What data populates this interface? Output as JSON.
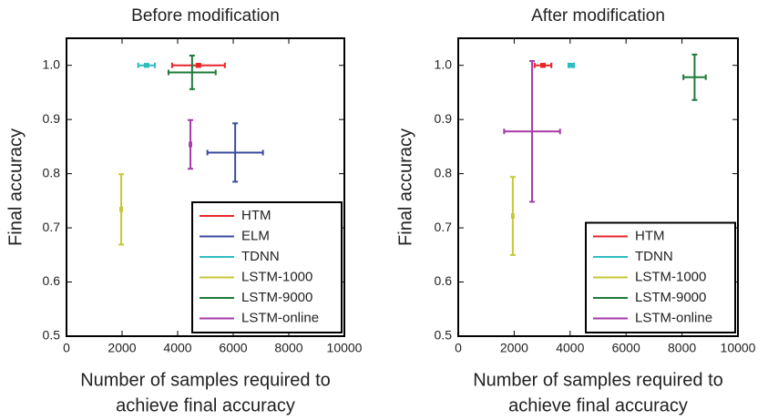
{
  "chart_data": [
    {
      "type": "errorbar",
      "title": "Before modification",
      "xlabel": [
        "Number of samples required to",
        "achieve final accuracy"
      ],
      "ylabel": "Final accuracy",
      "xlim": [
        0,
        10000
      ],
      "xticks": [
        0,
        2000,
        4000,
        6000,
        8000,
        10000
      ],
      "ylim": [
        0.5,
        1.05
      ],
      "yticks": [
        0.5,
        0.6,
        0.7,
        0.8,
        0.9,
        {
          "value": 1.0,
          "label": "1.0"
        }
      ],
      "legend": "lower right",
      "series": [
        {
          "name": "HTM",
          "color": "#e8262a",
          "x": [
            4750
          ],
          "xerr": [
            950
          ],
          "values": [
            1.0
          ],
          "yerr": [
            0.003
          ]
        },
        {
          "name": "ELM",
          "color": "#3b4ba0",
          "x": [
            6070
          ],
          "xerr": [
            1000
          ],
          "values": [
            0.839
          ],
          "yerr": [
            0.054
          ]
        },
        {
          "name": "TDNN",
          "color": "#2fbcc0",
          "x": [
            2880
          ],
          "xerr": [
            300
          ],
          "values": [
            1.0
          ],
          "yerr": [
            0.003
          ]
        },
        {
          "name": "LSTM-1000",
          "color": "#c4c934",
          "x": [
            1970
          ],
          "xerr": [
            30
          ],
          "values": [
            0.734
          ],
          "yerr": [
            0.065
          ]
        },
        {
          "name": "LSTM-9000",
          "color": "#1e7a3a",
          "x": [
            4520
          ],
          "xerr": [
            850
          ],
          "values": [
            0.987
          ],
          "yerr": [
            0.031
          ]
        },
        {
          "name": "LSTM-online",
          "color": "#a53aa8",
          "x": [
            4460
          ],
          "xerr": [
            30
          ],
          "values": [
            0.854
          ],
          "yerr": [
            0.045
          ]
        }
      ]
    },
    {
      "type": "errorbar",
      "title": "After modification",
      "xlabel": [
        "Number of samples required to",
        "achieve final accuracy"
      ],
      "ylabel": "Final accuracy",
      "xlim": [
        0,
        10000
      ],
      "xticks": [
        0,
        2000,
        4000,
        6000,
        8000,
        10000
      ],
      "ylim": [
        0.5,
        1.05
      ],
      "yticks": [
        0.5,
        0.6,
        0.7,
        0.8,
        0.9,
        {
          "value": 1.0,
          "label": "1.0"
        }
      ],
      "legend": "lower right",
      "series": [
        {
          "name": "HTM",
          "color": "#e8262a",
          "x": [
            3030
          ],
          "xerr": [
            300
          ],
          "values": [
            1.0
          ],
          "yerr": [
            0.003
          ]
        },
        {
          "name": "TDNN",
          "color": "#2fbcc0",
          "x": [
            4040
          ],
          "xerr": [
            100
          ],
          "values": [
            1.0
          ],
          "yerr": [
            0.003
          ]
        },
        {
          "name": "LSTM-1000",
          "color": "#c4c934",
          "x": [
            1950
          ],
          "xerr": [
            30
          ],
          "values": [
            0.722
          ],
          "yerr": [
            0.072
          ]
        },
        {
          "name": "LSTM-9000",
          "color": "#1e7a3a",
          "x": [
            8450
          ],
          "xerr": [
            400
          ],
          "values": [
            0.978
          ],
          "yerr": [
            0.042
          ]
        },
        {
          "name": "LSTM-online",
          "color": "#a53aa8",
          "x": [
            2640
          ],
          "xerr": [
            1000
          ],
          "values": [
            0.878
          ],
          "yerr": [
            0.13
          ]
        }
      ]
    }
  ]
}
